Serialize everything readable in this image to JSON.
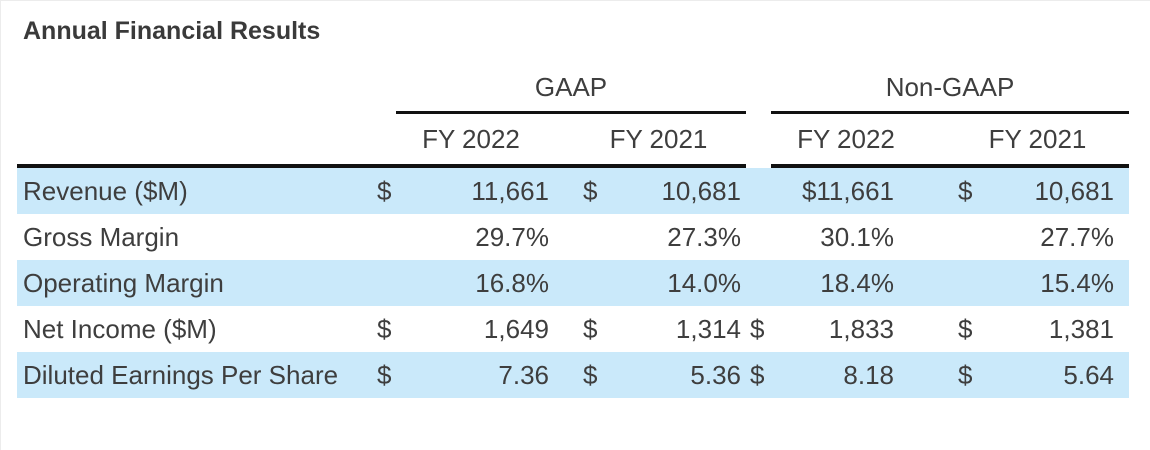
{
  "title": "Annual Financial Results",
  "table": {
    "groups": [
      {
        "label": "GAAP"
      },
      {
        "label": "Non-GAAP"
      }
    ],
    "col_headers": [
      "FY 2022",
      "FY 2021",
      "FY 2022",
      "FY 2021"
    ],
    "rows": [
      {
        "label": "Revenue ($M)",
        "cells": [
          {
            "d": "$",
            "v": "11,661"
          },
          {
            "d": "$",
            "v": "10,681"
          },
          {
            "d": "",
            "v": "$11,661"
          },
          {
            "d": "$",
            "v": "10,681"
          }
        ]
      },
      {
        "label": "Gross Margin",
        "cells": [
          {
            "d": "",
            "v": "29.7%"
          },
          {
            "d": "",
            "v": "27.3%"
          },
          {
            "d": "",
            "v": "30.1%"
          },
          {
            "d": "",
            "v": "27.7%"
          }
        ]
      },
      {
        "label": "Operating Margin",
        "cells": [
          {
            "d": "",
            "v": "16.8%"
          },
          {
            "d": "",
            "v": "14.0%"
          },
          {
            "d": "",
            "v": "18.4%"
          },
          {
            "d": "",
            "v": "15.4%"
          }
        ]
      },
      {
        "label": "Net Income ($M)",
        "cells": [
          {
            "d": "$",
            "v": "1,649"
          },
          {
            "d": "$",
            "v": "1,314"
          },
          {
            "d": "$",
            "v": "1,833"
          },
          {
            "d": "$",
            "v": "1,381"
          }
        ]
      },
      {
        "label": "Diluted Earnings Per Share",
        "cells": [
          {
            "d": "$",
            "v": "7.36"
          },
          {
            "d": "$",
            "v": "5.36"
          },
          {
            "d": "$",
            "v": "8.18"
          },
          {
            "d": "$",
            "v": "5.64"
          }
        ]
      }
    ]
  },
  "colors": {
    "highlight_row": "#cae9fa",
    "text": "#3e3e3e",
    "rule": "#111111"
  }
}
